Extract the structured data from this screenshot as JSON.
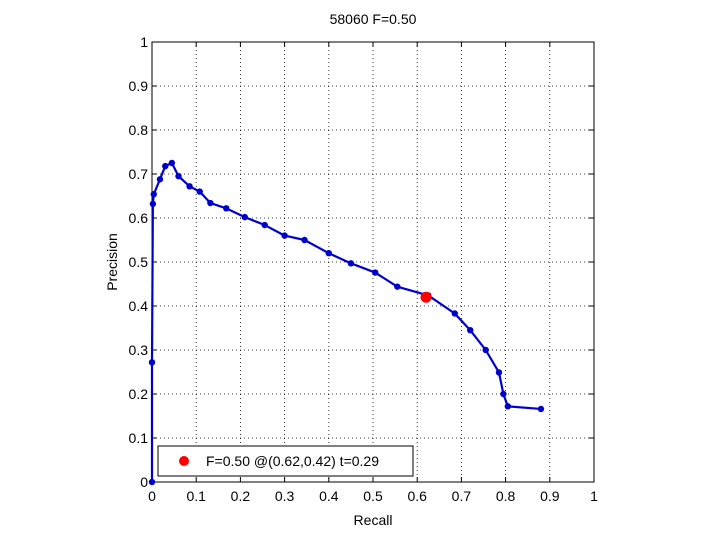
{
  "chart_data": {
    "type": "line",
    "title": "58060 F=0.50",
    "xlabel": "Recall",
    "ylabel": "Precision",
    "xlim": [
      0,
      1
    ],
    "ylim": [
      0,
      1
    ],
    "grid": true,
    "legend_position": "bottom-left",
    "x_ticks": [
      "0",
      "0.1",
      "0.2",
      "0.3",
      "0.4",
      "0.5",
      "0.6",
      "0.7",
      "0.8",
      "0.9",
      "1"
    ],
    "y_ticks": [
      "0",
      "0.1",
      "0.2",
      "0.3",
      "0.4",
      "0.5",
      "0.6",
      "0.7",
      "0.8",
      "0.9",
      "1"
    ],
    "series": [
      {
        "color": "#0000cc",
        "marker": "dot",
        "points": [
          [
            0.0,
            0.0
          ],
          [
            0.0,
            0.272
          ],
          [
            0.002,
            0.632
          ],
          [
            0.004,
            0.654
          ],
          [
            0.018,
            0.688
          ],
          [
            0.03,
            0.718
          ],
          [
            0.045,
            0.725
          ],
          [
            0.06,
            0.695
          ],
          [
            0.085,
            0.672
          ],
          [
            0.108,
            0.66
          ],
          [
            0.132,
            0.634
          ],
          [
            0.168,
            0.622
          ],
          [
            0.21,
            0.602
          ],
          [
            0.255,
            0.584
          ],
          [
            0.3,
            0.56
          ],
          [
            0.345,
            0.55
          ],
          [
            0.4,
            0.52
          ],
          [
            0.45,
            0.497
          ],
          [
            0.505,
            0.476
          ],
          [
            0.555,
            0.444
          ],
          [
            0.625,
            0.424
          ],
          [
            0.685,
            0.383
          ],
          [
            0.72,
            0.345
          ],
          [
            0.755,
            0.3
          ],
          [
            0.785,
            0.249
          ],
          [
            0.795,
            0.2
          ],
          [
            0.805,
            0.172
          ],
          [
            0.88,
            0.166
          ]
        ]
      }
    ],
    "highlight_point": {
      "recall": 0.62,
      "precision": 0.42,
      "color": "#ff0000"
    },
    "legend": {
      "label": "F=0.50 @(0.62,0.42) t=0.29"
    }
  }
}
